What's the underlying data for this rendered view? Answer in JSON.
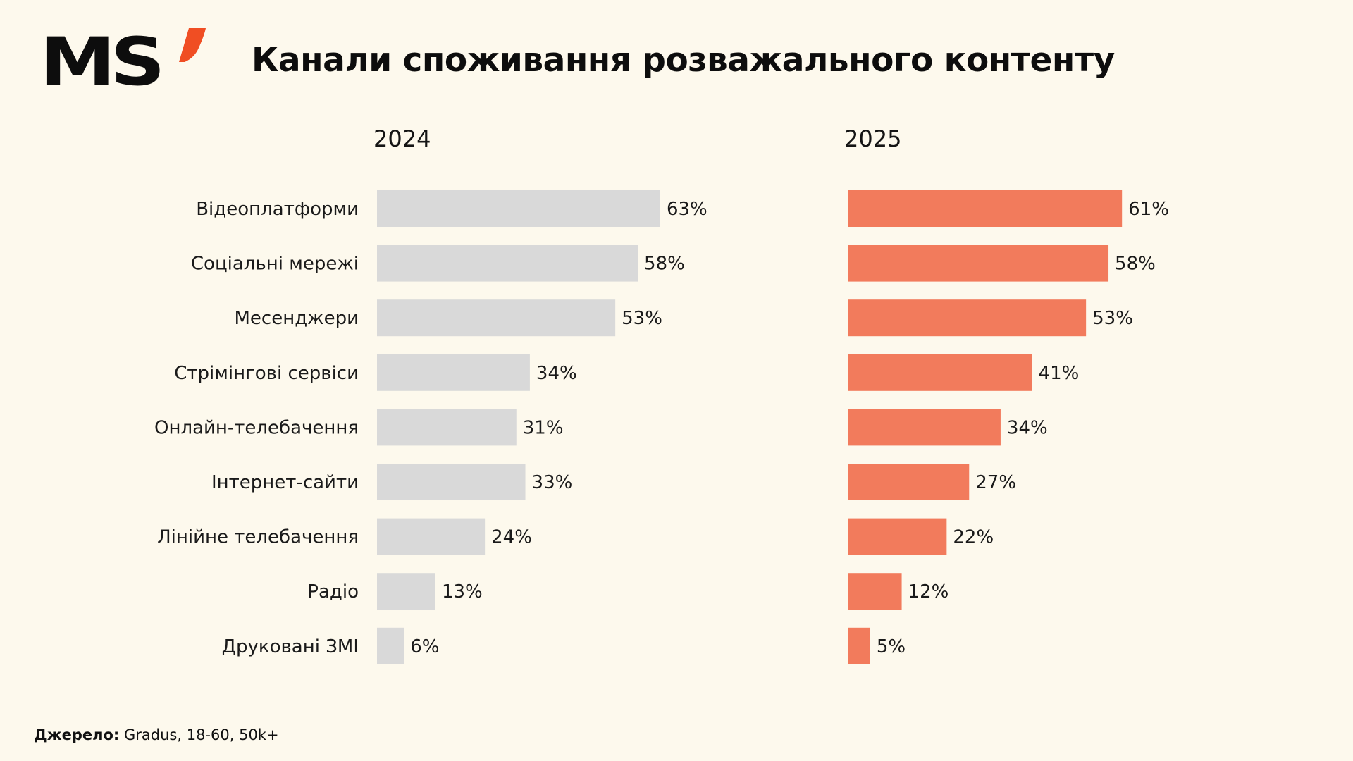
{
  "logo": {
    "text": "MS",
    "accent_color": "#f04e23"
  },
  "header": {
    "title": "Канали споживання розважального контенту"
  },
  "footer": {
    "source_label": "Джерело:",
    "source_value": " Gradus, 18-60, 50k+"
  },
  "chart_data": {
    "type": "bar",
    "orientation": "horizontal",
    "title": "Канали споживання розважального контенту",
    "xlabel": "",
    "ylabel": "",
    "unit": "%",
    "xlim": [
      0,
      100
    ],
    "grid": false,
    "legend": "none",
    "categories": [
      "Відеоплатформи",
      "Соціальні мережі",
      "Месенджери",
      "Стрімінгові сервіси",
      "Онлайн-телебачення",
      "Інтернет-сайти",
      "Лінійне телебачення",
      "Радіо",
      "Друковані ЗМІ"
    ],
    "series": [
      {
        "name": "2024",
        "color": "#d9d9d9",
        "values": [
          63,
          58,
          53,
          34,
          31,
          33,
          24,
          13,
          6
        ]
      },
      {
        "name": "2025",
        "color": "#f27b5c",
        "values": [
          61,
          58,
          53,
          41,
          34,
          27,
          22,
          12,
          5
        ]
      }
    ]
  }
}
